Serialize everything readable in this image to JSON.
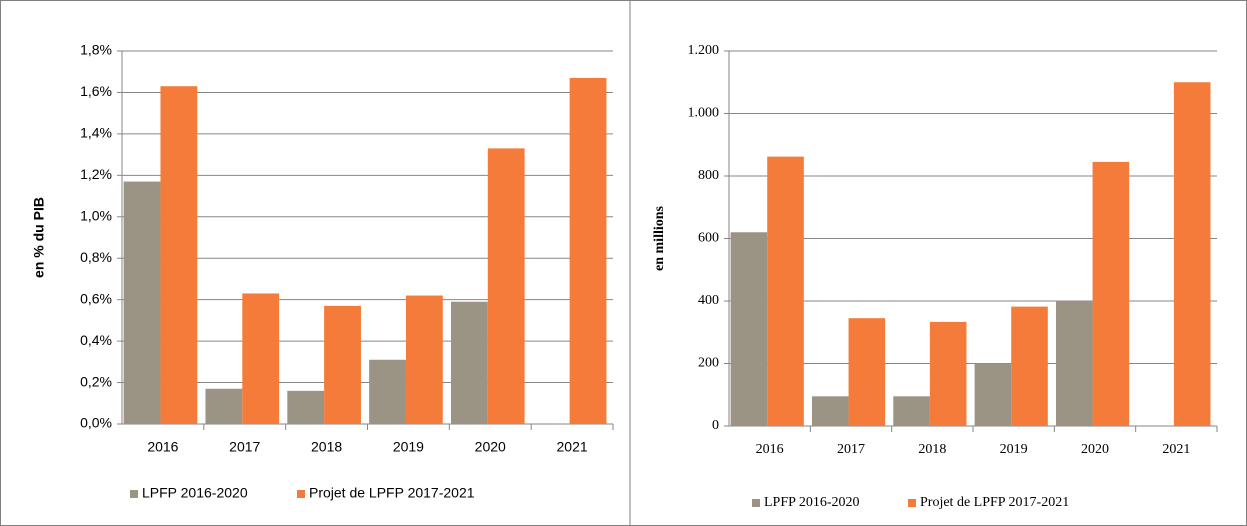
{
  "chart_data": [
    {
      "type": "bar",
      "y_label": "en % du PIB",
      "categories": [
        "2016",
        "2017",
        "2018",
        "2019",
        "2020",
        "2021"
      ],
      "series": [
        {
          "name": "LPFP 2016-2020",
          "color": "#9b9485",
          "values": [
            1.17,
            0.17,
            0.16,
            0.31,
            0.59,
            null
          ]
        },
        {
          "name": "Projet de LPFP 2017-2021",
          "color": "#f47b3a",
          "values": [
            1.63,
            0.63,
            0.57,
            0.62,
            1.33,
            1.67
          ]
        }
      ],
      "ylim": [
        0,
        1.8
      ],
      "yticks": [
        {
          "value": 0,
          "label": "0,0%"
        },
        {
          "value": 0.2,
          "label": "0,2%"
        },
        {
          "value": 0.4,
          "label": "0,4%"
        },
        {
          "value": 0.6,
          "label": "0,6%"
        },
        {
          "value": 0.8,
          "label": "0,8%"
        },
        {
          "value": 1.0,
          "label": "1,0%"
        },
        {
          "value": 1.2,
          "label": "1,2%"
        },
        {
          "value": 1.4,
          "label": "1,4%"
        },
        {
          "value": 1.6,
          "label": "1,6%"
        },
        {
          "value": 1.8,
          "label": "1,8%"
        }
      ],
      "grid": true,
      "legend": "bottom"
    },
    {
      "type": "bar",
      "y_label": "en millions",
      "categories": [
        "2016",
        "2017",
        "2018",
        "2019",
        "2020",
        "2021"
      ],
      "series": [
        {
          "name": "LPFP 2016-2020",
          "color": "#9b9485",
          "values": [
            620,
            95,
            95,
            200,
            400,
            null
          ]
        },
        {
          "name": "Projet de LPFP 2017-2021",
          "color": "#f47b3a",
          "values": [
            862,
            345,
            333,
            382,
            845,
            1100
          ]
        }
      ],
      "ylim": [
        0,
        1200
      ],
      "yticks": [
        0,
        200,
        400,
        600,
        800,
        {
          "value": 1000,
          "label": "1.000"
        },
        {
          "value": 1200,
          "label": "1.200"
        }
      ],
      "grid": true,
      "legend": "bottom"
    }
  ]
}
